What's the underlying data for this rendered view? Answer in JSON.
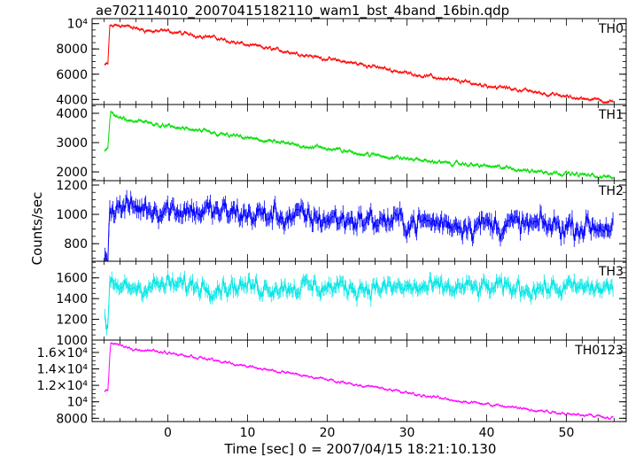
{
  "chart_data": {
    "type": "line",
    "title": "ae702114010_20070415182110_wam1_bst_4band_16bin.qdp",
    "xlabel": "Time [sec] 0 = 2007/04/15 18:21:10.130",
    "ylabel": "Counts/sec",
    "xlim": [
      -9.5,
      57.5
    ],
    "xticks": [
      0,
      10,
      20,
      30,
      40,
      50
    ],
    "xtick_labels": [
      "0",
      "10",
      "20",
      "30",
      "40",
      "50"
    ],
    "grid": false,
    "error_bars": true,
    "x_step": 0.125,
    "x_start": -7.9,
    "x_end": 55.9,
    "panels": [
      {
        "name": "TH0",
        "color": "#ff0000",
        "ylim": [
          3600,
          10400
        ],
        "yticks": [
          4000,
          6000,
          8000,
          10000
        ],
        "ytick_labels": [
          "4000",
          "6000",
          "8000",
          "10⁴"
        ],
        "series": [
          {
            "x": -7.9,
            "y": 6700
          },
          {
            "x": -7.5,
            "y": 6800
          },
          {
            "x": -7.3,
            "y": 9800
          },
          {
            "x": -6,
            "y": 9900
          },
          {
            "x": -4,
            "y": 9600
          },
          {
            "x": -2,
            "y": 9400
          },
          {
            "x": 0,
            "y": 9400
          },
          {
            "x": 3,
            "y": 9100
          },
          {
            "x": 5,
            "y": 9000
          },
          {
            "x": 10,
            "y": 8300
          },
          {
            "x": 15,
            "y": 7800
          },
          {
            "x": 20,
            "y": 7200
          },
          {
            "x": 25,
            "y": 6700
          },
          {
            "x": 30,
            "y": 6100
          },
          {
            "x": 35,
            "y": 5600
          },
          {
            "x": 40,
            "y": 5100
          },
          {
            "x": 45,
            "y": 4700
          },
          {
            "x": 50,
            "y": 4200
          },
          {
            "x": 55.9,
            "y": 3850
          }
        ],
        "noise": 150
      },
      {
        "name": "TH1",
        "color": "#00dd00",
        "ylim": [
          1700,
          4300
        ],
        "yticks": [
          2000,
          3000,
          4000
        ],
        "ytick_labels": [
          "2000",
          "3000",
          "4000"
        ],
        "series": [
          {
            "x": -7.9,
            "y": 2700
          },
          {
            "x": -7.5,
            "y": 2750
          },
          {
            "x": -7.2,
            "y": 4100
          },
          {
            "x": -6,
            "y": 3800
          },
          {
            "x": -3,
            "y": 3700
          },
          {
            "x": 0,
            "y": 3550
          },
          {
            "x": 5,
            "y": 3350
          },
          {
            "x": 10,
            "y": 3150
          },
          {
            "x": 15,
            "y": 2950
          },
          {
            "x": 20,
            "y": 2800
          },
          {
            "x": 25,
            "y": 2600
          },
          {
            "x": 30,
            "y": 2450
          },
          {
            "x": 35,
            "y": 2300
          },
          {
            "x": 40,
            "y": 2200
          },
          {
            "x": 45,
            "y": 2050
          },
          {
            "x": 50,
            "y": 1950
          },
          {
            "x": 55.9,
            "y": 1800
          }
        ],
        "noise": 70
      },
      {
        "name": "TH2",
        "color": "#0000ff",
        "ylim": [
          680,
          1230
        ],
        "yticks": [
          800,
          1000,
          1200
        ],
        "ytick_labels": [
          "800",
          "1000",
          "1200"
        ],
        "series": [
          {
            "x": -7.9,
            "y": 760
          },
          {
            "x": -7.5,
            "y": 740
          },
          {
            "x": -7.3,
            "y": 1050
          },
          {
            "x": 0,
            "y": 1040
          },
          {
            "x": 10,
            "y": 1000
          },
          {
            "x": 20,
            "y": 970
          },
          {
            "x": 30,
            "y": 950
          },
          {
            "x": 40,
            "y": 930
          },
          {
            "x": 50,
            "y": 920
          },
          {
            "x": 55.9,
            "y": 920
          }
        ],
        "noise": 75
      },
      {
        "name": "TH3",
        "color": "#00e5e5",
        "ylim": [
          1000,
          1760
        ],
        "yticks": [
          1000,
          1200,
          1400,
          1600
        ],
        "ytick_labels": [
          "1000",
          "1200",
          "1400",
          "1600"
        ],
        "series": [
          {
            "x": -7.9,
            "y": 1250
          },
          {
            "x": -7.6,
            "y": 1000
          },
          {
            "x": -7.3,
            "y": 1500
          },
          {
            "x": 0,
            "y": 1530
          },
          {
            "x": 10,
            "y": 1520
          },
          {
            "x": 20,
            "y": 1510
          },
          {
            "x": 30,
            "y": 1500
          },
          {
            "x": 40,
            "y": 1500
          },
          {
            "x": 50,
            "y": 1500
          },
          {
            "x": 55.9,
            "y": 1500
          }
        ],
        "noise": 85
      },
      {
        "name": "TH0123",
        "color": "#ff00ff",
        "ylim": [
          7600,
          17500
        ],
        "yticks": [
          8000,
          10000,
          12000,
          14000,
          16000
        ],
        "ytick_labels": [
          "8000",
          "10⁴",
          "1.2×10⁴",
          "1.4×10⁴",
          "1.6×10⁴"
        ],
        "series": [
          {
            "x": -7.9,
            "y": 11300
          },
          {
            "x": -7.5,
            "y": 11400
          },
          {
            "x": -7.2,
            "y": 17200
          },
          {
            "x": -5,
            "y": 16500
          },
          {
            "x": 0,
            "y": 16000
          },
          {
            "x": 5,
            "y": 15200
          },
          {
            "x": 10,
            "y": 14300
          },
          {
            "x": 15,
            "y": 13500
          },
          {
            "x": 20,
            "y": 12700
          },
          {
            "x": 25,
            "y": 11900
          },
          {
            "x": 30,
            "y": 11100
          },
          {
            "x": 35,
            "y": 10300
          },
          {
            "x": 40,
            "y": 9700
          },
          {
            "x": 45,
            "y": 9100
          },
          {
            "x": 50,
            "y": 8600
          },
          {
            "x": 55.9,
            "y": 8100
          }
        ],
        "noise": 180
      }
    ]
  }
}
